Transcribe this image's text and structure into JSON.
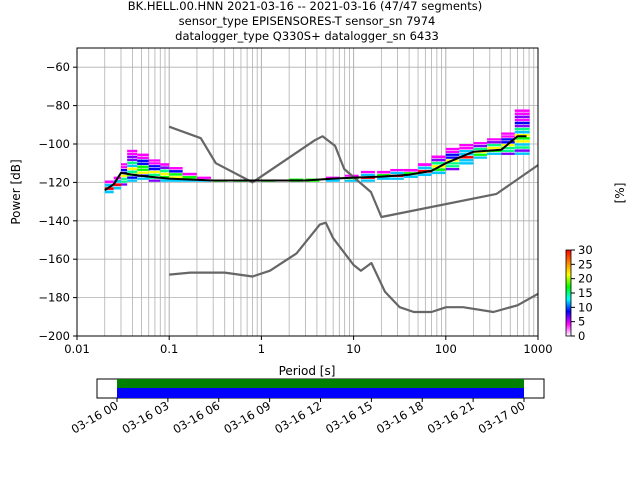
{
  "title": {
    "line1": "BK.HELL.00.HNN   2021-03-16 -- 2021-03-16  (47/47 segments)",
    "line2": "sensor_type EPISENSORES-T sensor_sn 7974",
    "line3": "datalogger_type Q330S+ datalogger_sn 6433"
  },
  "chart_data": {
    "type": "heatmap",
    "xlabel": "Period [s]",
    "ylabel": "Power [dB]",
    "xscale": "log",
    "xlim": [
      0.01,
      1000
    ],
    "ylim": [
      -200,
      -50
    ],
    "grid": true,
    "xticks": [
      {
        "value": 0.01,
        "label": "0.01"
      },
      {
        "value": 0.1,
        "label": "0.1"
      },
      {
        "value": 1,
        "label": "1"
      },
      {
        "value": 10,
        "label": "10"
      },
      {
        "value": 100,
        "label": "100"
      },
      {
        "value": 1000,
        "label": "1000"
      }
    ],
    "yticks": [
      {
        "value": -60,
        "label": "−60"
      },
      {
        "value": -80,
        "label": "−80"
      },
      {
        "value": -100,
        "label": "−100"
      },
      {
        "value": -120,
        "label": "−120"
      },
      {
        "value": -140,
        "label": "−140"
      },
      {
        "value": -160,
        "label": "−160"
      },
      {
        "value": -180,
        "label": "−180"
      },
      {
        "value": -200,
        "label": "−200"
      }
    ],
    "colorbar": {
      "label": "[%]",
      "range": [
        0,
        30
      ],
      "ticks": [
        "0",
        "5",
        "10",
        "15",
        "20",
        "25",
        "30"
      ],
      "colors": [
        "#ffffff",
        "#ff00ff",
        "#0000ff",
        "#00ffff",
        "#00ff00",
        "#ffff00",
        "#ff8000",
        "#ff0000"
      ]
    },
    "series": [
      {
        "role": "new-high-noise-model",
        "color": "#666666",
        "points": [
          [
            0.1,
            -91
          ],
          [
            0.22,
            -97
          ],
          [
            0.32,
            -110
          ],
          [
            0.8,
            -120
          ],
          [
            3.8,
            -98
          ],
          [
            4.6,
            -96
          ],
          [
            6.3,
            -101
          ],
          [
            7.9,
            -113
          ],
          [
            15.4,
            -125
          ],
          [
            20,
            -138
          ],
          [
            354.8,
            -126
          ],
          [
            1000,
            -111
          ]
        ]
      },
      {
        "role": "new-low-noise-model",
        "color": "#666666",
        "points": [
          [
            0.1,
            -168
          ],
          [
            0.17,
            -167
          ],
          [
            0.4,
            -167
          ],
          [
            0.8,
            -169
          ],
          [
            1.24,
            -166
          ],
          [
            2.4,
            -157
          ],
          [
            4.3,
            -142
          ],
          [
            5,
            -141
          ],
          [
            6,
            -149
          ],
          [
            10,
            -163
          ],
          [
            12,
            -166
          ],
          [
            15.6,
            -162
          ],
          [
            21.9,
            -177
          ],
          [
            31.6,
            -185
          ],
          [
            45,
            -187.5
          ],
          [
            70,
            -187.5
          ],
          [
            101,
            -185
          ],
          [
            154,
            -185
          ],
          [
            328,
            -187.5
          ],
          [
            600,
            -184
          ],
          [
            1000,
            -178
          ]
        ]
      },
      {
        "role": "mode",
        "color": "#000000",
        "points": [
          [
            0.02,
            -124
          ],
          [
            0.025,
            -121
          ],
          [
            0.03,
            -115
          ],
          [
            0.04,
            -116
          ],
          [
            0.06,
            -117
          ],
          [
            0.1,
            -118
          ],
          [
            0.3,
            -119
          ],
          [
            1,
            -119
          ],
          [
            3,
            -119
          ],
          [
            6,
            -118
          ],
          [
            10,
            -117.5
          ],
          [
            20,
            -117
          ],
          [
            40,
            -116
          ],
          [
            70,
            -114
          ],
          [
            100,
            -110
          ],
          [
            200,
            -104
          ],
          [
            400,
            -103
          ],
          [
            600,
            -96
          ],
          [
            750,
            -96
          ]
        ]
      }
    ],
    "heatmap_columns": [
      {
        "period": 0.02,
        "min": -126,
        "max": -119
      },
      {
        "period": 0.025,
        "min": -124,
        "max": -117
      },
      {
        "period": 0.03,
        "min": -122,
        "max": -110
      },
      {
        "period": 0.035,
        "min": -120,
        "max": -103
      },
      {
        "period": 0.045,
        "min": -119,
        "max": -105
      },
      {
        "period": 0.06,
        "min": -120,
        "max": -108
      },
      {
        "period": 0.08,
        "min": -120,
        "max": -110
      },
      {
        "period": 0.1,
        "min": -120,
        "max": -112
      },
      {
        "period": 0.14,
        "min": -120,
        "max": -115
      },
      {
        "period": 0.2,
        "min": -120,
        "max": -117
      },
      {
        "period": 0.3,
        "min": -120,
        "max": -119
      },
      {
        "period": 0.5,
        "min": -120,
        "max": -119
      },
      {
        "period": 1,
        "min": -120,
        "max": -119
      },
      {
        "period": 2,
        "min": -120,
        "max": -118
      },
      {
        "period": 3,
        "min": -120,
        "max": -118
      },
      {
        "period": 5,
        "min": -120,
        "max": -117
      },
      {
        "period": 8,
        "min": -120,
        "max": -116
      },
      {
        "period": 12,
        "min": -120,
        "max": -114
      },
      {
        "period": 18,
        "min": -119,
        "max": -114
      },
      {
        "period": 25,
        "min": -119,
        "max": -113
      },
      {
        "period": 35,
        "min": -118,
        "max": -113
      },
      {
        "period": 50,
        "min": -117,
        "max": -110
      },
      {
        "period": 70,
        "min": -116,
        "max": -106
      },
      {
        "period": 100,
        "min": -114,
        "max": -102
      },
      {
        "period": 140,
        "min": -111,
        "max": -100
      },
      {
        "period": 200,
        "min": -108,
        "max": -99
      },
      {
        "period": 280,
        "min": -106,
        "max": -97
      },
      {
        "period": 400,
        "min": -106,
        "max": -94
      },
      {
        "period": 560,
        "min": -106,
        "max": -82
      },
      {
        "period": 700,
        "min": -106,
        "max": -82
      }
    ],
    "timeline": {
      "ticks": [
        "03-16 00",
        "03-16 03",
        "03-16 06",
        "03-16 09",
        "03-16 12",
        "03-16 15",
        "03-16 18",
        "03-16 21",
        "03-17 00"
      ],
      "coverage_colors": {
        "data": "#008000",
        "psd": "#0000ff"
      }
    }
  }
}
